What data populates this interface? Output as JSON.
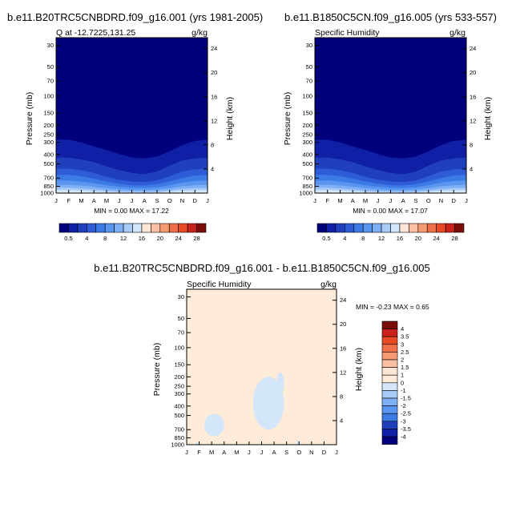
{
  "chart_data": [
    {
      "type": "contour",
      "title": "b.e11.B20TRC5CNBDRD.f09_g16.001 (yrs 1981-2005)",
      "subtitle_left": "Q at -12.7225,131.25",
      "subtitle_right": "g/kg",
      "xlabel": "",
      "ylabel": "Pressure (mb)",
      "y2label": "Height (km)",
      "x_ticks": [
        "J",
        "F",
        "M",
        "A",
        "M",
        "J",
        "J",
        "A",
        "S",
        "O",
        "N",
        "D",
        "J"
      ],
      "pressure_ticks": [
        30,
        50,
        70,
        100,
        150,
        200,
        250,
        300,
        400,
        500,
        700,
        850,
        1000
      ],
      "pressure_range": [
        1000,
        25
      ],
      "height_ticks": [
        4,
        8,
        12,
        16,
        20,
        24
      ],
      "stats": "MIN =   0.00 MAX =  17.22",
      "contour_tops_mb": [
        {
          "level": 0.5,
          "values": [
            282,
            282,
            300,
            330,
            360,
            395,
            430,
            440,
            420,
            370,
            320,
            290,
            282
          ]
        },
        {
          "level": 2,
          "values": [
            430,
            430,
            450,
            480,
            530,
            580,
            620,
            640,
            600,
            520,
            460,
            440,
            430
          ]
        },
        {
          "level": 4,
          "values": [
            560,
            560,
            580,
            620,
            680,
            730,
            760,
            770,
            740,
            670,
            600,
            570,
            560
          ]
        },
        {
          "level": 6,
          "values": [
            650,
            650,
            670,
            710,
            760,
            800,
            830,
            835,
            810,
            760,
            700,
            660,
            650
          ]
        },
        {
          "level": 8,
          "values": [
            740,
            740,
            760,
            790,
            830,
            860,
            880,
            885,
            870,
            830,
            780,
            750,
            740
          ]
        },
        {
          "level": 10,
          "values": [
            820,
            820,
            835,
            860,
            890,
            915,
            930,
            930,
            920,
            890,
            850,
            830,
            820
          ]
        },
        {
          "level": 12,
          "values": [
            880,
            880,
            895,
            915,
            940,
            955,
            965,
            965,
            960,
            935,
            905,
            890,
            880
          ]
        },
        {
          "level": 14,
          "values": [
            930,
            930,
            940,
            955,
            970,
            980,
            987,
            987,
            983,
            965,
            945,
            935,
            930
          ]
        },
        {
          "level": 16,
          "values": [
            975,
            975,
            980,
            988,
            995,
            999,
            1000,
            1000,
            999,
            992,
            985,
            978,
            975
          ]
        }
      ]
    },
    {
      "type": "contour",
      "title": "b.e11.B1850C5CN.f09_g16.005 (yrs 533-557)",
      "subtitle_left": "Specific Humidity",
      "subtitle_right": "g/kg",
      "xlabel": "",
      "ylabel": "Pressure (mb)",
      "y2label": "Height (km)",
      "x_ticks": [
        "J",
        "F",
        "M",
        "A",
        "M",
        "J",
        "J",
        "A",
        "S",
        "O",
        "N",
        "D",
        "J"
      ],
      "pressure_ticks": [
        30,
        50,
        70,
        100,
        150,
        200,
        250,
        300,
        400,
        500,
        700,
        850,
        1000
      ],
      "pressure_range": [
        1000,
        25
      ],
      "height_ticks": [
        4,
        8,
        12,
        16,
        20,
        24
      ],
      "stats": "MIN =   0.00 MAX =  17.07",
      "contour_tops_mb": [
        {
          "level": 0.5,
          "values": [
            282,
            282,
            300,
            330,
            360,
            395,
            430,
            440,
            420,
            370,
            320,
            290,
            282
          ]
        },
        {
          "level": 2,
          "values": [
            430,
            430,
            450,
            480,
            530,
            580,
            620,
            640,
            600,
            520,
            460,
            440,
            430
          ]
        },
        {
          "level": 4,
          "values": [
            560,
            560,
            580,
            620,
            680,
            730,
            760,
            770,
            740,
            670,
            600,
            570,
            560
          ]
        },
        {
          "level": 6,
          "values": [
            650,
            650,
            670,
            710,
            760,
            800,
            830,
            835,
            810,
            760,
            700,
            660,
            650
          ]
        },
        {
          "level": 8,
          "values": [
            740,
            740,
            760,
            790,
            830,
            860,
            880,
            885,
            870,
            830,
            780,
            750,
            740
          ]
        },
        {
          "level": 10,
          "values": [
            820,
            820,
            835,
            860,
            890,
            915,
            930,
            930,
            920,
            890,
            850,
            830,
            820
          ]
        },
        {
          "level": 12,
          "values": [
            880,
            880,
            895,
            915,
            940,
            955,
            965,
            965,
            960,
            935,
            905,
            890,
            880
          ]
        },
        {
          "level": 14,
          "values": [
            930,
            930,
            940,
            955,
            970,
            980,
            987,
            987,
            983,
            965,
            945,
            935,
            930
          ]
        },
        {
          "level": 16,
          "values": [
            975,
            975,
            980,
            988,
            995,
            999,
            1000,
            1000,
            999,
            992,
            985,
            978,
            975
          ]
        }
      ]
    },
    {
      "type": "contour",
      "title": "b.e11.B20TRC5CNBDRD.f09_g16.001 - b.e11.B1850C5CN.f09_g16.005",
      "subtitle_left": "Specific Humidity",
      "subtitle_right": "g/kg",
      "xlabel": "",
      "ylabel": "Pressure (mb)",
      "y2label": "Height (km)",
      "x_ticks": [
        "J",
        "F",
        "M",
        "A",
        "M",
        "J",
        "J",
        "A",
        "S",
        "O",
        "N",
        "D",
        "J"
      ],
      "pressure_ticks": [
        30,
        50,
        70,
        100,
        150,
        200,
        250,
        300,
        400,
        500,
        700,
        850,
        1000
      ],
      "pressure_range": [
        1000,
        25
      ],
      "height_ticks": [
        4,
        8,
        12,
        16,
        20,
        24
      ],
      "stats": "MIN =  -0.23 MAX =   0.65",
      "background_class": "0 to 1",
      "negative_regions": [
        {
          "class": "-1 to 0",
          "months": [
            1.4,
            3.0
          ],
          "pressure_mb": [
            480,
            820
          ]
        },
        {
          "class": "-1 to 0",
          "months": [
            5.3,
            7.8
          ],
          "pressure_mb": [
            200,
            700
          ]
        },
        {
          "class": "-1 to 0",
          "months": [
            7.2,
            7.8
          ],
          "pressure_mb": [
            180,
            300
          ]
        },
        {
          "class": "-1 to 0",
          "months": [
            8.8,
            9.0
          ],
          "pressure_mb": [
            900,
            1000
          ]
        },
        {
          "class": "-1 to 0",
          "months": [
            0.7,
            0.9
          ],
          "pressure_mb": [
            940,
            1000
          ]
        }
      ]
    }
  ],
  "colorbar_top": {
    "labels": [
      "0.5",
      "2",
      "4",
      "6",
      "8",
      "10",
      "12",
      "14",
      "16",
      "18",
      "20",
      "22",
      "24",
      "26",
      "28"
    ],
    "shown_labels": [
      "0.5",
      "4",
      "8",
      "12",
      "16",
      "20",
      "24",
      "28"
    ],
    "colors": [
      "#00007d",
      "#0f1fa6",
      "#1f3fbd",
      "#2d5cd6",
      "#3c7be6",
      "#5a96ef",
      "#7fb0f5",
      "#a8cbf8",
      "#d1e6fb",
      "#fde5d8",
      "#fbc0a3",
      "#f59a73",
      "#ef7048",
      "#e84a26",
      "#c8221a",
      "#7a0f0a"
    ]
  },
  "colorbar_diff": {
    "labels": [
      "4",
      "3.5",
      "3",
      "2.5",
      "2",
      "1.5",
      "1",
      "0",
      "-1",
      "-1.5",
      "-2",
      "-2.5",
      "-3",
      "-3.5",
      "-4"
    ],
    "colors": [
      "#7a0f0a",
      "#c8221a",
      "#e84a26",
      "#ef7048",
      "#f59a73",
      "#fbc0a3",
      "#fde5d8",
      "#feebd8",
      "#d3e6fa",
      "#a8cbf8",
      "#7fb0f5",
      "#5a96ef",
      "#3c7be6",
      "#1f3fbd",
      "#0f1fa6",
      "#00007d"
    ]
  }
}
